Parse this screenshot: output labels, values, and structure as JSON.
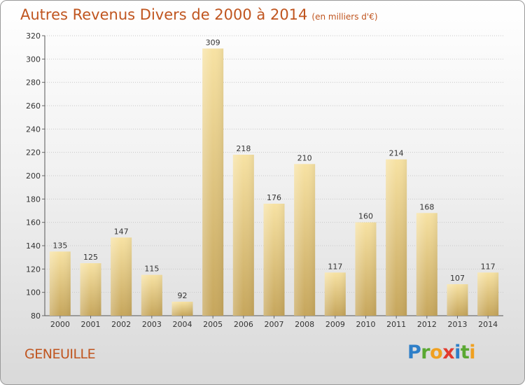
{
  "title": "Autres Revenus Divers de 2000 à 2014",
  "subtitle": "(en milliers d'€)",
  "location": "GENEUILLE",
  "logo": {
    "letters": [
      {
        "ch": "P",
        "color": "#2e7fc8"
      },
      {
        "ch": "r",
        "color": "#5aa832"
      },
      {
        "ch": "o",
        "color": "#f0a020"
      },
      {
        "ch": "x",
        "color": "#e23a2e"
      },
      {
        "ch": "i",
        "color": "#2e7fc8"
      },
      {
        "ch": "t",
        "color": "#5aa832"
      },
      {
        "ch": "i",
        "color": "#f0a020"
      }
    ]
  },
  "colors": {
    "title": "#c0551f",
    "bar_light": "#f7e2a3",
    "bar_dark": "#c6a65c"
  },
  "chart_data": {
    "type": "bar",
    "categories": [
      "2000",
      "2001",
      "2002",
      "2003",
      "2004",
      "2005",
      "2006",
      "2007",
      "2008",
      "2009",
      "2010",
      "2011",
      "2012",
      "2013",
      "2014"
    ],
    "values": [
      135,
      125,
      147,
      115,
      92,
      309,
      218,
      176,
      210,
      117,
      160,
      214,
      168,
      107,
      117
    ],
    "ylim": [
      80,
      320
    ],
    "yticks": [
      80,
      100,
      120,
      140,
      160,
      180,
      200,
      220,
      240,
      260,
      280,
      300,
      320
    ],
    "grid": true
  }
}
